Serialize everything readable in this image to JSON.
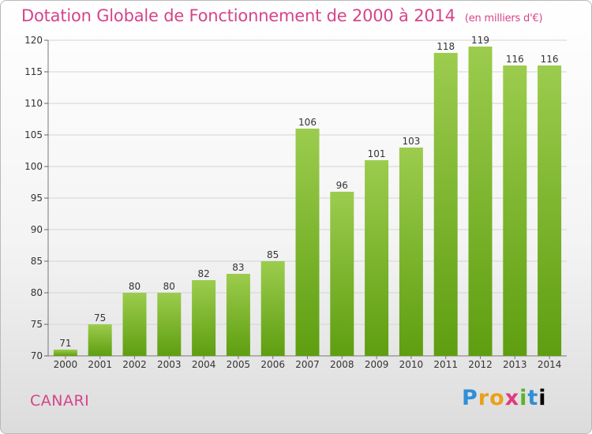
{
  "header": {
    "title": "Dotation Globale de Fonctionnement de 2000 à 2014",
    "unit": "(en milliers d'€)"
  },
  "footer": {
    "commune": "CANARI",
    "brand": "Proxiti"
  },
  "colors": {
    "bar_light": "#9ccc4e",
    "bar_dark": "#5e9e10",
    "title": "#d5448a",
    "grid": "#d4d4d4"
  },
  "chart_data": {
    "type": "bar",
    "title": "Dotation Globale de Fonctionnement de 2000 à 2014",
    "subtitle": "(en milliers d'€)",
    "categories": [
      "2000",
      "2001",
      "2002",
      "2003",
      "2004",
      "2005",
      "2006",
      "2007",
      "2008",
      "2009",
      "2010",
      "2011",
      "2012",
      "2013",
      "2014"
    ],
    "values": [
      71,
      75,
      80,
      80,
      82,
      83,
      85,
      106,
      96,
      101,
      103,
      118,
      119,
      116,
      116
    ],
    "ylim": [
      70,
      120
    ],
    "yticks": [
      70,
      75,
      80,
      85,
      90,
      95,
      100,
      105,
      110,
      115,
      120
    ],
    "grid": true,
    "data_labels": true
  }
}
